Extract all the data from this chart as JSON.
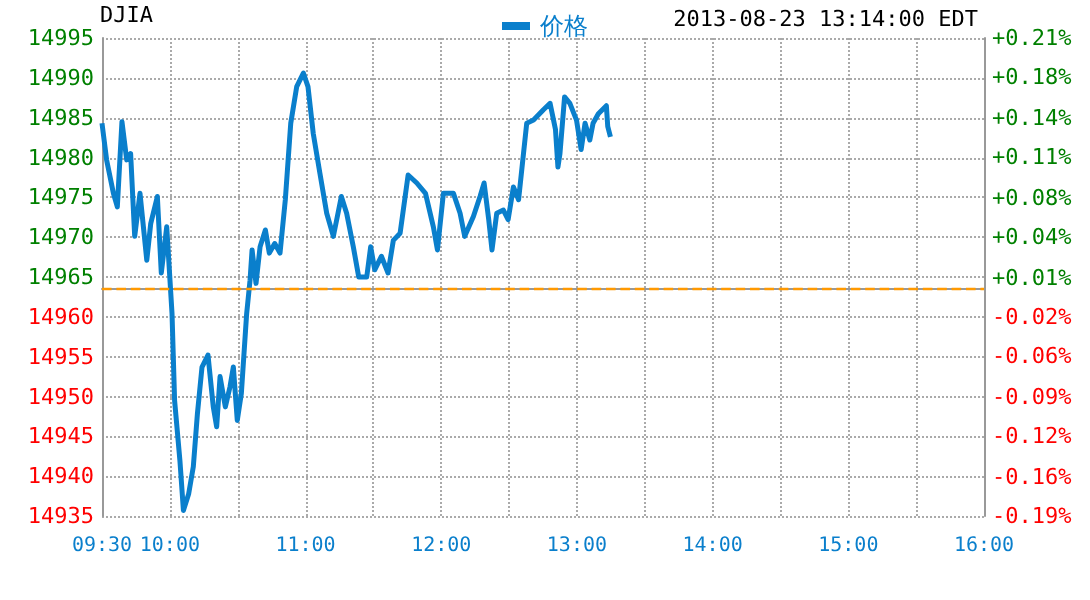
{
  "chart_data": {
    "type": "line",
    "title": "DJIA",
    "annotations": [
      "2013-08-23 13:14:00 EDT"
    ],
    "x": [
      9.5,
      9.534,
      9.584,
      9.613,
      9.647,
      9.682,
      9.711,
      9.741,
      9.78,
      9.83,
      9.859,
      9.908,
      9.937,
      9.977,
      10.016,
      10.035,
      10.074,
      10.1,
      10.139,
      10.173,
      10.203,
      10.237,
      10.281,
      10.32,
      10.345,
      10.37,
      10.409,
      10.443,
      10.468,
      10.497,
      10.527,
      10.566,
      10.591,
      10.606,
      10.635,
      10.665,
      10.704,
      10.733,
      10.773,
      10.812,
      10.851,
      10.891,
      10.935,
      10.984,
      11.018,
      11.057,
      11.106,
      11.156,
      11.205,
      11.264,
      11.303,
      11.352,
      11.392,
      11.451,
      11.48,
      11.51,
      11.559,
      11.608,
      11.647,
      11.697,
      11.756,
      11.82,
      11.884,
      11.942,
      11.972,
      12.016,
      12.09,
      12.139,
      12.173,
      12.237,
      12.286,
      12.316,
      12.35,
      12.374,
      12.409,
      12.458,
      12.493,
      12.532,
      12.57,
      12.63,
      12.68,
      12.753,
      12.802,
      12.842,
      12.86,
      12.875,
      12.909,
      12.948,
      12.997,
      13.031,
      13.06,
      13.095,
      13.119,
      13.158,
      13.217,
      13.227,
      13.247
    ],
    "series": [
      {
        "name": "价格",
        "color": "#0a7fcc",
        "values": [
          14984.3,
          14979.7,
          14975.5,
          14973.8,
          14984.5,
          14979.7,
          14980.5,
          14970.1,
          14975.5,
          14967.1,
          14971.7,
          14975.1,
          14965.5,
          14971.3,
          14960.4,
          14949.5,
          14942,
          14935.7,
          14937.8,
          14941.2,
          14947.8,
          14953.7,
          14955.2,
          14948.7,
          14946.2,
          14952.5,
          14948.7,
          14951.2,
          14953.7,
          14947,
          14950.4,
          14960.4,
          14964.6,
          14968.4,
          14964.2,
          14968.8,
          14970.9,
          14968,
          14969.2,
          14968,
          14974.7,
          14984.3,
          14988.9,
          14990.6,
          14988.9,
          14983,
          14978,
          14973,
          14970.1,
          14975.1,
          14973,
          14968.8,
          14965,
          14965,
          14968.8,
          14965.9,
          14967.6,
          14965.5,
          14969.6,
          14970.5,
          14977.8,
          14976.8,
          14975.5,
          14971.3,
          14968.4,
          14975.5,
          14975.5,
          14973,
          14970.1,
          14972.6,
          14975.1,
          14976.8,
          14972.2,
          14968.4,
          14973,
          14973.4,
          14972.2,
          14976.3,
          14974.7,
          14984.3,
          14984.7,
          14986,
          14986.8,
          14983.5,
          14978.8,
          14980.5,
          14987.6,
          14986.8,
          14984.7,
          14981,
          14984.3,
          14982.2,
          14984.3,
          14985.5,
          14986.5,
          14983.9,
          14982.6
        ]
      }
    ],
    "xlim": [
      9.5,
      16
    ],
    "xticks": [
      {
        "value": 9.5,
        "label": "09:30"
      },
      {
        "value": 10,
        "label": "10:00"
      },
      {
        "value": 10.5,
        "label": null
      },
      {
        "value": 11,
        "label": "11:00"
      },
      {
        "value": 11.5,
        "label": null
      },
      {
        "value": 12,
        "label": "12:00"
      },
      {
        "value": 12.5,
        "label": null
      },
      {
        "value": 13,
        "label": "13:00"
      },
      {
        "value": 13.5,
        "label": null
      },
      {
        "value": 14,
        "label": "14:00"
      },
      {
        "value": 14.5,
        "label": null
      },
      {
        "value": 15,
        "label": "15:00"
      },
      {
        "value": 15.5,
        "label": null
      },
      {
        "value": 16,
        "label": "16:00"
      }
    ],
    "ylim": [
      14935,
      14995
    ],
    "yticks": [
      14935,
      14940,
      14945,
      14950,
      14955,
      14960,
      14965,
      14970,
      14975,
      14980,
      14985,
      14990,
      14995
    ],
    "y2lim": [
      -0.191,
      0.21
    ],
    "y2ticks": [
      {
        "value": -0.191,
        "label": "-0.19%"
      },
      {
        "value": -0.158,
        "label": "-0.16%"
      },
      {
        "value": -0.124,
        "label": "-0.12%"
      },
      {
        "value": -0.091,
        "label": "-0.09%"
      },
      {
        "value": -0.057,
        "label": "-0.06%"
      },
      {
        "value": -0.024,
        "label": "-0.02%"
      },
      {
        "value": 0.009,
        "label": "+0.01%"
      },
      {
        "value": 0.043,
        "label": "+0.04%"
      },
      {
        "value": 0.076,
        "label": "+0.08%"
      },
      {
        "value": 0.11,
        "label": "+0.11%"
      },
      {
        "value": 0.143,
        "label": "+0.14%"
      },
      {
        "value": 0.177,
        "label": "+0.18%"
      },
      {
        "value": 0.21,
        "label": "+0.21%"
      }
    ],
    "ref_lines": [
      {
        "axis": "y",
        "value": 14963.5,
        "color": "#ff9900",
        "line_style": "dashed"
      }
    ],
    "grid": true,
    "legend": "top",
    "marker": "none",
    "line_style": "solid"
  }
}
